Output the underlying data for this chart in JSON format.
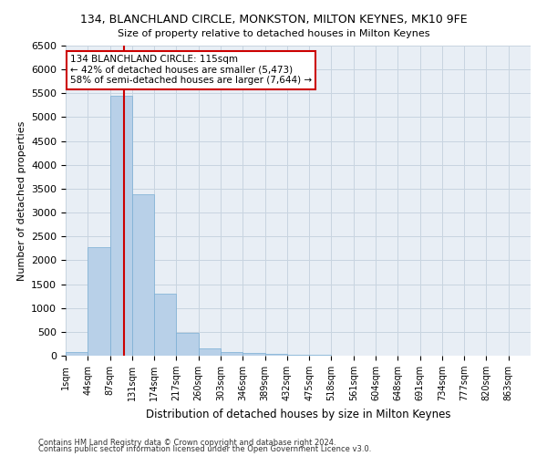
{
  "title": "134, BLANCHLAND CIRCLE, MONKSTON, MILTON KEYNES, MK10 9FE",
  "subtitle": "Size of property relative to detached houses in Milton Keynes",
  "xlabel": "Distribution of detached houses by size in Milton Keynes",
  "ylabel": "Number of detached properties",
  "footnote1": "Contains HM Land Registry data © Crown copyright and database right 2024.",
  "footnote2": "Contains public sector information licensed under the Open Government Licence v3.0.",
  "bar_labels": [
    "1sqm",
    "44sqm",
    "87sqm",
    "131sqm",
    "174sqm",
    "217sqm",
    "260sqm",
    "303sqm",
    "346sqm",
    "389sqm",
    "432sqm",
    "475sqm",
    "518sqm",
    "561sqm",
    "604sqm",
    "648sqm",
    "691sqm",
    "734sqm",
    "777sqm",
    "820sqm",
    "863sqm"
  ],
  "bar_values": [
    75,
    2280,
    5450,
    3380,
    1300,
    480,
    155,
    75,
    60,
    30,
    20,
    10,
    5,
    3,
    2,
    1,
    1,
    0,
    0,
    0,
    0
  ],
  "bar_color": "#b8d0e8",
  "bar_edge_color": "#7aaed4",
  "grid_color": "#c8d4e0",
  "background_color": "#e8eef5",
  "ylim": [
    0,
    6500
  ],
  "yticks": [
    0,
    500,
    1000,
    1500,
    2000,
    2500,
    3000,
    3500,
    4000,
    4500,
    5000,
    5500,
    6000,
    6500
  ],
  "annotation_line1": "134 BLANCHLAND CIRCLE: 115sqm",
  "annotation_line2": "← 42% of detached houses are smaller (5,473)",
  "annotation_line3": "58% of semi-detached houses are larger (7,644) →",
  "red_line_color": "#cc0000",
  "annotation_box_facecolor": "#ffffff",
  "annotation_box_edgecolor": "#cc0000",
  "property_sqm": 115,
  "bin_starts": [
    1,
    44,
    87,
    131,
    174,
    217,
    260,
    303,
    346,
    389,
    432,
    475,
    518,
    561,
    604,
    648,
    691,
    734,
    777,
    820,
    863
  ]
}
